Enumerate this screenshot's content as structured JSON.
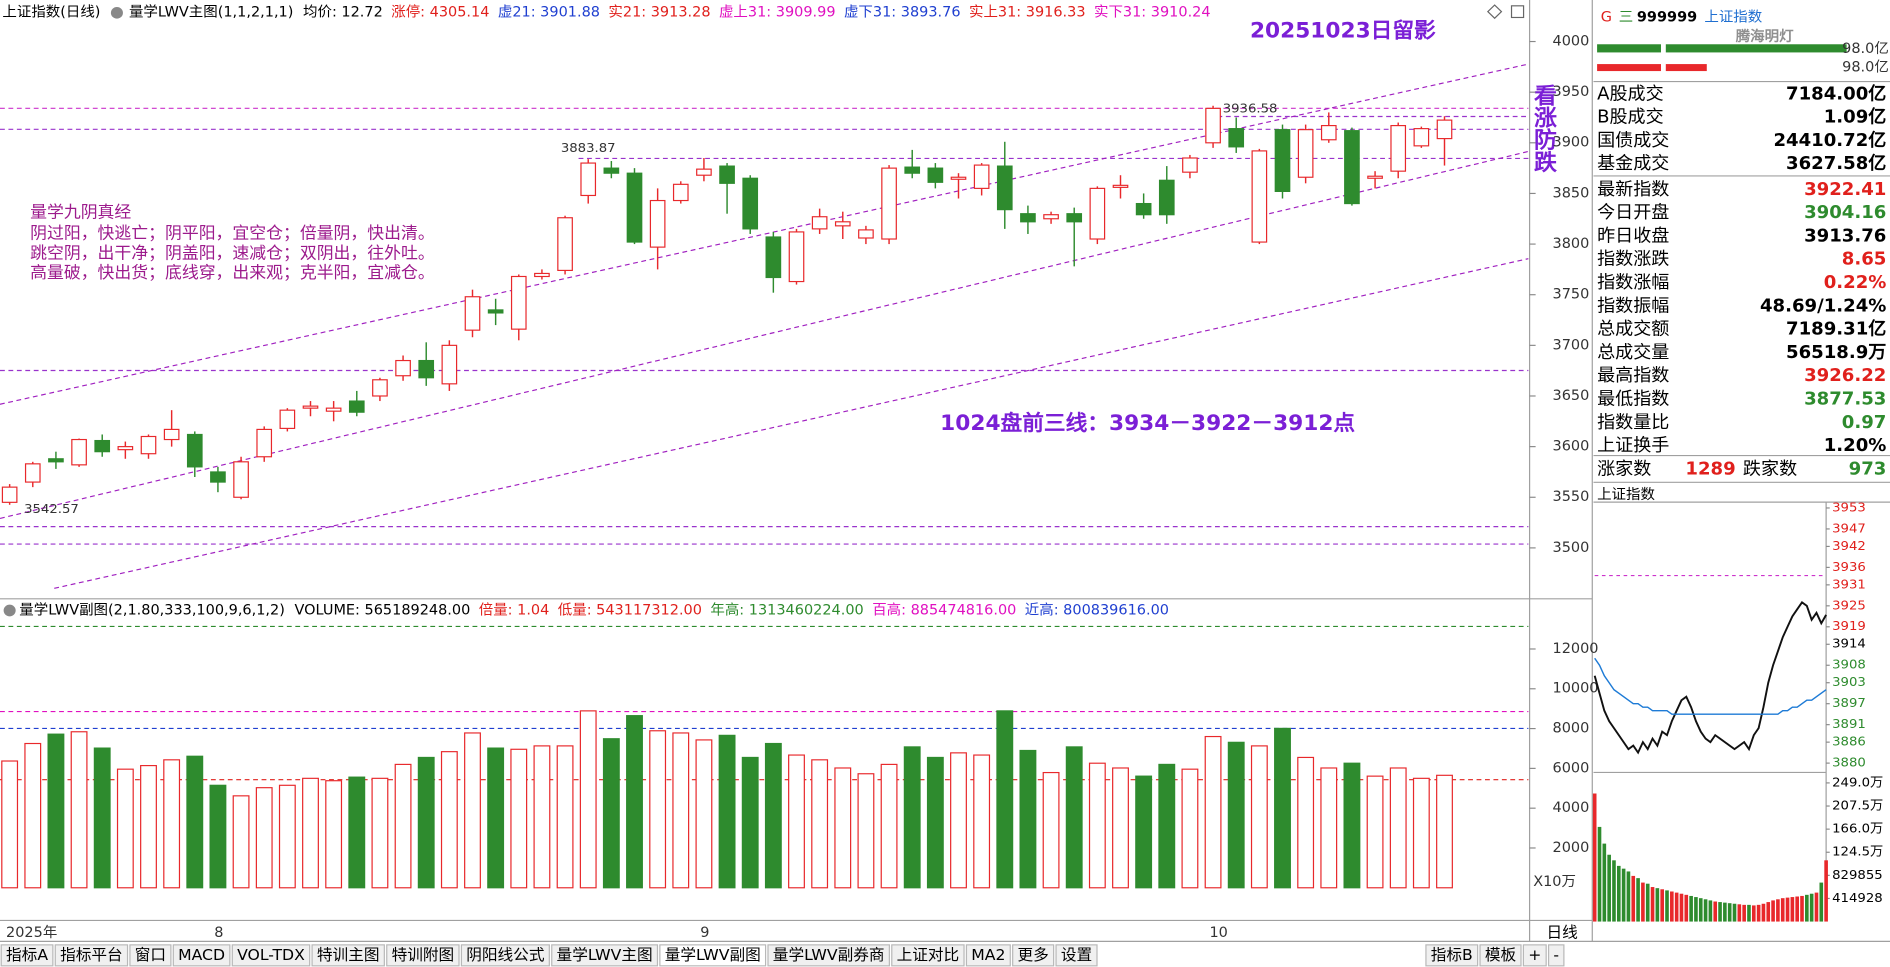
{
  "chart_data": [
    {
      "type": "candlestick",
      "title": "上证指数(日线)",
      "indicator": "量学LWV主图(1,1,2,1,1)",
      "stats": [
        {
          "text": "均价: 12.72",
          "color": "#000000"
        },
        {
          "text": "涨停: 4305.14",
          "color": "#e0201c"
        },
        {
          "text": "虚21: 3901.88",
          "color": "#1f3fd0"
        },
        {
          "text": "实21: 3913.28",
          "color": "#e0201c"
        },
        {
          "text": "虚上31: 3909.99",
          "color": "#e010c0"
        },
        {
          "text": "虚下31: 3893.76",
          "color": "#1f3fd0"
        },
        {
          "text": "实上31: 3916.33",
          "color": "#e0201c"
        },
        {
          "text": "实下31: 3910.24",
          "color": "#e010c0"
        }
      ],
      "open": [
        3545,
        3565,
        3588,
        3582,
        3606,
        3597,
        3593,
        3607,
        3612,
        3575,
        3550,
        3590,
        3618,
        3638,
        3635,
        3645,
        3650,
        3670,
        3685,
        3662,
        3715,
        3735,
        3716,
        3768,
        3774,
        3848,
        3875,
        3870,
        3797,
        3843,
        3868,
        3877,
        3865,
        3807,
        3763,
        3815,
        3818,
        3806,
        3805,
        3876,
        3875,
        3864,
        3855,
        3877,
        3830,
        3825,
        3830,
        3805,
        3856,
        3840,
        3863,
        3871,
        3900,
        3914,
        3802,
        3913,
        3866,
        3903,
        3912,
        3865,
        3872,
        3897,
        3904.16
      ],
      "high": [
        3563,
        3585,
        3595,
        3608,
        3612,
        3605,
        3612,
        3636,
        3615,
        3580,
        3590,
        3620,
        3638,
        3645,
        3645,
        3655,
        3668,
        3690,
        3703,
        3705,
        3755,
        3746,
        3770,
        3775,
        3828,
        3883.87,
        3882,
        3875,
        3855,
        3862,
        3885,
        3880,
        3868,
        3812,
        3815,
        3835,
        3832,
        3818,
        3878,
        3893,
        3880,
        3870,
        3880,
        3901,
        3838,
        3832,
        3836,
        3857,
        3868,
        3850,
        3877,
        3888,
        3936.58,
        3925,
        3894,
        3918,
        3918,
        3930,
        3915,
        3872,
        3920,
        3916,
        3926.22
      ],
      "low": [
        3542.57,
        3560,
        3578,
        3580,
        3590,
        3588,
        3588,
        3600,
        3570,
        3555,
        3548,
        3585,
        3615,
        3630,
        3625,
        3630,
        3645,
        3665,
        3660,
        3655,
        3708,
        3720,
        3705,
        3765,
        3770,
        3840,
        3865,
        3800,
        3775,
        3840,
        3862,
        3830,
        3810,
        3752,
        3760,
        3810,
        3805,
        3800,
        3800,
        3865,
        3855,
        3845,
        3848,
        3815,
        3810,
        3820,
        3778,
        3800,
        3845,
        3825,
        3820,
        3865,
        3895,
        3890,
        3800,
        3845,
        3860,
        3900,
        3838,
        3855,
        3865,
        3895,
        3877.53
      ],
      "close": [
        3560,
        3583,
        3585,
        3607,
        3595,
        3600,
        3610,
        3617,
        3580,
        3565,
        3585,
        3617,
        3636,
        3640,
        3638,
        3634,
        3666,
        3685,
        3668,
        3700,
        3748,
        3732,
        3768,
        3771,
        3826,
        3880,
        3870,
        3802,
        3843,
        3859,
        3874,
        3860,
        3815,
        3767,
        3812,
        3827,
        3822,
        3814,
        3875,
        3870,
        3861,
        3866,
        3878,
        3834,
        3822,
        3829,
        3822,
        3855,
        3858,
        3829,
        3829,
        3885,
        3934,
        3896,
        3892,
        3852,
        3913,
        3917,
        3840,
        3867,
        3917,
        3914,
        3922.41
      ],
      "colors": {
        "up": "#e8282b",
        "down": "#2e8b2e"
      },
      "ylim": [
        3452,
        4018
      ],
      "yticks": [
        3500,
        3550,
        3600,
        3650,
        3700,
        3750,
        3800,
        3850,
        3900,
        3950,
        4000
      ],
      "x_labels": [
        {
          "index": 0,
          "label": "2025年"
        },
        {
          "index": 9,
          "label": "8"
        },
        {
          "index": 30,
          "label": "9"
        },
        {
          "index": 52,
          "label": "10"
        }
      ],
      "annotations": [
        {
          "text": "20251023日留影",
          "color": "#7b1fd6"
        },
        {
          "text": "看涨防跌",
          "color": "#7b1fd6"
        },
        {
          "text": "1024盘前三线：3934－3922－3912点",
          "color": "#7b1fd6"
        }
      ],
      "notes": {
        "title": "量学九阴真经",
        "lines": [
          "阴过阳，快逃亡；阴平阳，宜空仓；倍量阴，快出清。",
          "跳空阴，出干净；阴盖阳，速减仓；双阴出，往外吐。",
          "高量破，快出货；底线穿，出来观；克半阳，宜减仓。"
        ],
        "color": "#9c1a8c"
      }
    },
    {
      "type": "bar",
      "title": "量学LWV副图(2,1.80,333,100,9,6,1,2)",
      "stats": [
        {
          "text": "VOLUME: 565189248.00",
          "color": "#000000"
        },
        {
          "text": "倍量: 1.04",
          "color": "#e0201c"
        },
        {
          "text": "低量: 543117312.00",
          "color": "#e0201c"
        },
        {
          "text": "年高: 1313460224.00",
          "color": "#2e8b2e"
        },
        {
          "text": "百高: 885474816.00",
          "color": "#e010c0"
        },
        {
          "text": "近高: 800839616.00",
          "color": "#1f3fd0"
        }
      ],
      "values": [
        6370,
        7250,
        7720,
        7840,
        7020,
        5960,
        6140,
        6430,
        6610,
        5150,
        4620,
        5030,
        5150,
        5500,
        5380,
        5560,
        5500,
        6200,
        6550,
        6840,
        7780,
        7020,
        6960,
        7130,
        7130,
        8890,
        7490,
        8650,
        7890,
        7780,
        7430,
        7660,
        6550,
        7250,
        6670,
        6430,
        6020,
        5730,
        6200,
        7080,
        6550,
        6780,
        6670,
        8890,
        6900,
        5790,
        7080,
        6260,
        6020,
        5610,
        6200,
        5960,
        7600,
        7310,
        7130,
        8010,
        6550,
        6020,
        6260,
        5610,
        6020,
        5500,
        5652
      ],
      "ylim": [
        0,
        13466
      ],
      "yticks": [
        2000,
        4000,
        6000,
        8000,
        10000,
        12000
      ],
      "y_unit": "X10万",
      "ref_lines": [
        {
          "value": 13135,
          "color": "#2e8b2e"
        },
        {
          "value": 8855,
          "color": "#e010c0"
        },
        {
          "value": 8008,
          "color": "#1f3fd0"
        },
        {
          "value": 5431,
          "color": "#e0201c"
        }
      ]
    },
    {
      "type": "line",
      "title": "上证指数",
      "series": [
        {
          "color": "#111111",
          "values": [
            3905,
            3900,
            3895,
            3892,
            3890,
            3888,
            3886,
            3884,
            3885,
            3883,
            3886,
            3884,
            3887,
            3885,
            3889,
            3888,
            3892,
            3895,
            3898,
            3899,
            3896,
            3892,
            3889,
            3887,
            3886,
            3888,
            3887,
            3886,
            3885,
            3884,
            3885,
            3886,
            3884,
            3888,
            3890,
            3896,
            3903,
            3908,
            3912,
            3916,
            3919,
            3922,
            3924,
            3926,
            3925,
            3921,
            3923,
            3920,
            3922.41
          ]
        },
        {
          "color": "#1e7bd6",
          "values": [
            3910,
            3908,
            3905,
            3903,
            3901,
            3900,
            3899,
            3898,
            3897,
            3897,
            3896,
            3896,
            3895,
            3895,
            3895,
            3895,
            3894,
            3894,
            3894,
            3894,
            3894,
            3894,
            3894,
            3894,
            3894,
            3894,
            3894,
            3894,
            3894,
            3894,
            3894,
            3894,
            3894,
            3894,
            3894,
            3894,
            3894,
            3894,
            3894,
            3895,
            3895,
            3896,
            3896,
            3897,
            3898,
            3898,
            3899,
            3900,
            3901
          ]
        }
      ],
      "ylim": [
        3880,
        3953
      ],
      "yticks": [
        3953,
        3947,
        3942,
        3936,
        3931,
        3925,
        3919,
        3914,
        3908,
        3903,
        3897,
        3891,
        3886,
        3880
      ],
      "ytick_colors": [
        "#e0201c",
        "#e0201c",
        "#e0201c",
        "#e0201c",
        "#e0201c",
        "#e0201c",
        "#e0201c",
        "#000000",
        "#2e8b2e",
        "#2e8b2e",
        "#2e8b2e",
        "#2e8b2e",
        "#2e8b2e",
        "#2e8b2e"
      ]
    },
    {
      "type": "bar",
      "values": [
        2300000,
        1700000,
        1400000,
        1200000,
        1100000,
        1000000,
        950000,
        900000,
        820000,
        780000,
        700000,
        680000,
        620000,
        600000,
        580000,
        560000,
        540000,
        520000,
        500000,
        480000,
        460000,
        440000,
        420000,
        400000,
        380000,
        360000,
        350000,
        340000,
        330000,
        320000,
        310000,
        300000,
        300000,
        290000,
        300000,
        320000,
        350000,
        380000,
        400000,
        420000,
        430000,
        440000,
        450000,
        460000,
        480000,
        500000,
        520000,
        700000,
        1100000
      ],
      "ylim": [
        0,
        2490000
      ],
      "yticks": [
        {
          "value": 2490000,
          "label": "249.0万"
        },
        {
          "value": 2075000,
          "label": "207.5万"
        },
        {
          "value": 1660000,
          "label": "166.0万"
        },
        {
          "value": 1245000,
          "label": "124.5万"
        },
        829855,
        414928
      ],
      "colors": {
        "up": "#e8282b",
        "down": "#2e8b2e"
      }
    }
  ],
  "quote_panel": {
    "g": "G",
    "menu": "三",
    "code": "999999",
    "name": "上证指数",
    "watermark": "腾海明灯",
    "bar_labels": [
      "98.0亿",
      "98.0亿"
    ],
    "rows": [
      {
        "label": "A股成交",
        "value": "7184.00亿",
        "color": "#000000"
      },
      {
        "label": "B股成交",
        "value": "1.09亿",
        "color": "#000000"
      },
      {
        "label": "国债成交",
        "value": "24410.72亿",
        "color": "#000000"
      },
      {
        "label": "基金成交",
        "value": "3627.58亿",
        "color": "#000000"
      },
      {
        "label": "最新指数",
        "value": "3922.41",
        "color": "#e0201c"
      },
      {
        "label": "今日开盘",
        "value": "3904.16",
        "color": "#2e8b2e"
      },
      {
        "label": "昨日收盘",
        "value": "3913.76",
        "color": "#000000"
      },
      {
        "label": "指数涨跌",
        "value": "8.65",
        "color": "#e0201c"
      },
      {
        "label": "指数涨幅",
        "value": "0.22%",
        "color": "#e0201c"
      },
      {
        "label": "指数振幅",
        "value": "48.69/1.24%",
        "color": "#000000"
      },
      {
        "label": "总成交额",
        "value": "7189.31亿",
        "color": "#000000"
      },
      {
        "label": "总成交量",
        "value": "56518.9万",
        "color": "#000000"
      },
      {
        "label": "最高指数",
        "value": "3926.22",
        "color": "#e0201c"
      },
      {
        "label": "最低指数",
        "value": "3877.53",
        "color": "#2e8b2e"
      },
      {
        "label": "指数量比",
        "value": "0.97",
        "color": "#2e8b2e"
      },
      {
        "label": "上证换手",
        "value": "1.20%",
        "color": "#000000"
      }
    ],
    "breadth": {
      "up_label": "涨家数",
      "up": "1289",
      "down_label": "跌家数",
      "down": "973"
    }
  },
  "toolbar": {
    "tabs": [
      {
        "text": "指标A"
      },
      {
        "text": "指标平台"
      },
      {
        "text": "窗口"
      },
      {
        "text": "MACD"
      },
      {
        "text": "VOL-TDX"
      },
      {
        "text": "特训主图"
      },
      {
        "text": "特训附图"
      },
      {
        "text": "阴阳线公式"
      },
      {
        "text": "量学LWV主图"
      },
      {
        "text": "量学LWV副图",
        "active": true
      },
      {
        "text": "量学LWV副券商"
      },
      {
        "text": "上证对比"
      },
      {
        "text": "MA2"
      },
      {
        "text": "更多"
      },
      {
        "text": "设置"
      }
    ],
    "right_tabs": [
      {
        "text": "指标B"
      },
      {
        "text": "模板"
      },
      {
        "text": "+"
      },
      {
        "text": "-"
      }
    ],
    "period": "日线"
  }
}
